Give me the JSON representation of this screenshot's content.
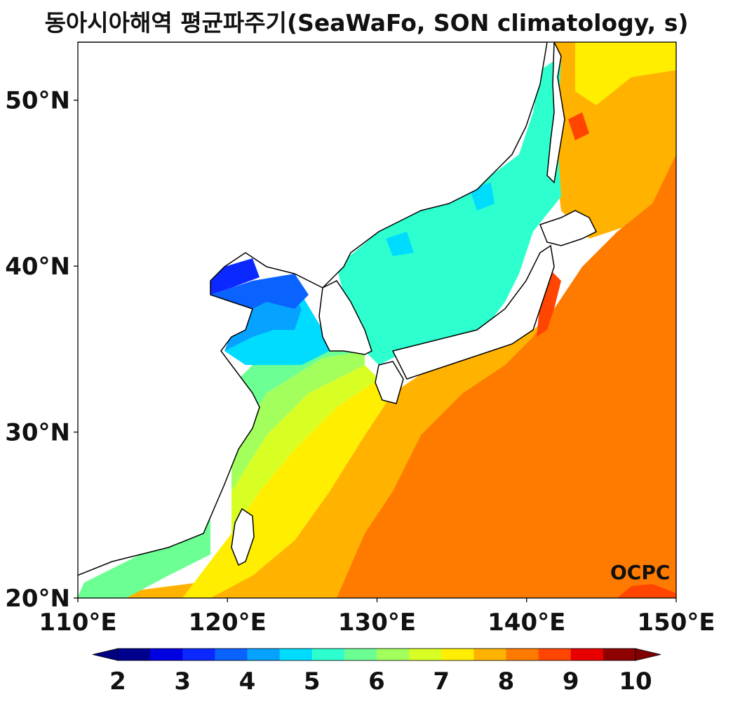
{
  "title": "동아시아해역 평균파주기(SeaWaFo, SON climatology, s)",
  "map": {
    "lon_range": [
      110,
      150
    ],
    "lat_range": [
      20,
      53.5
    ],
    "lon_ticks": [
      "110°E",
      "120°E",
      "130°E",
      "140°E",
      "150°E"
    ],
    "lat_ticks": [
      "20°N",
      "30°N",
      "40°N",
      "50°N"
    ],
    "logo": "OCPC"
  },
  "colorbar": {
    "labels": [
      "2",
      "3",
      "4",
      "5",
      "6",
      "7",
      "8",
      "9",
      "10"
    ],
    "colors": [
      "#00008f",
      "#0000e0",
      "#0a28ff",
      "#0a62ff",
      "#05a2ff",
      "#00dcff",
      "#2effcf",
      "#6cff94",
      "#a2ff5c",
      "#d8ff24",
      "#ffee00",
      "#ffb300",
      "#ff7b00",
      "#ff4500",
      "#e80000",
      "#8f0000"
    ],
    "extend_low": "#000080",
    "extend_high": "#800000"
  }
}
